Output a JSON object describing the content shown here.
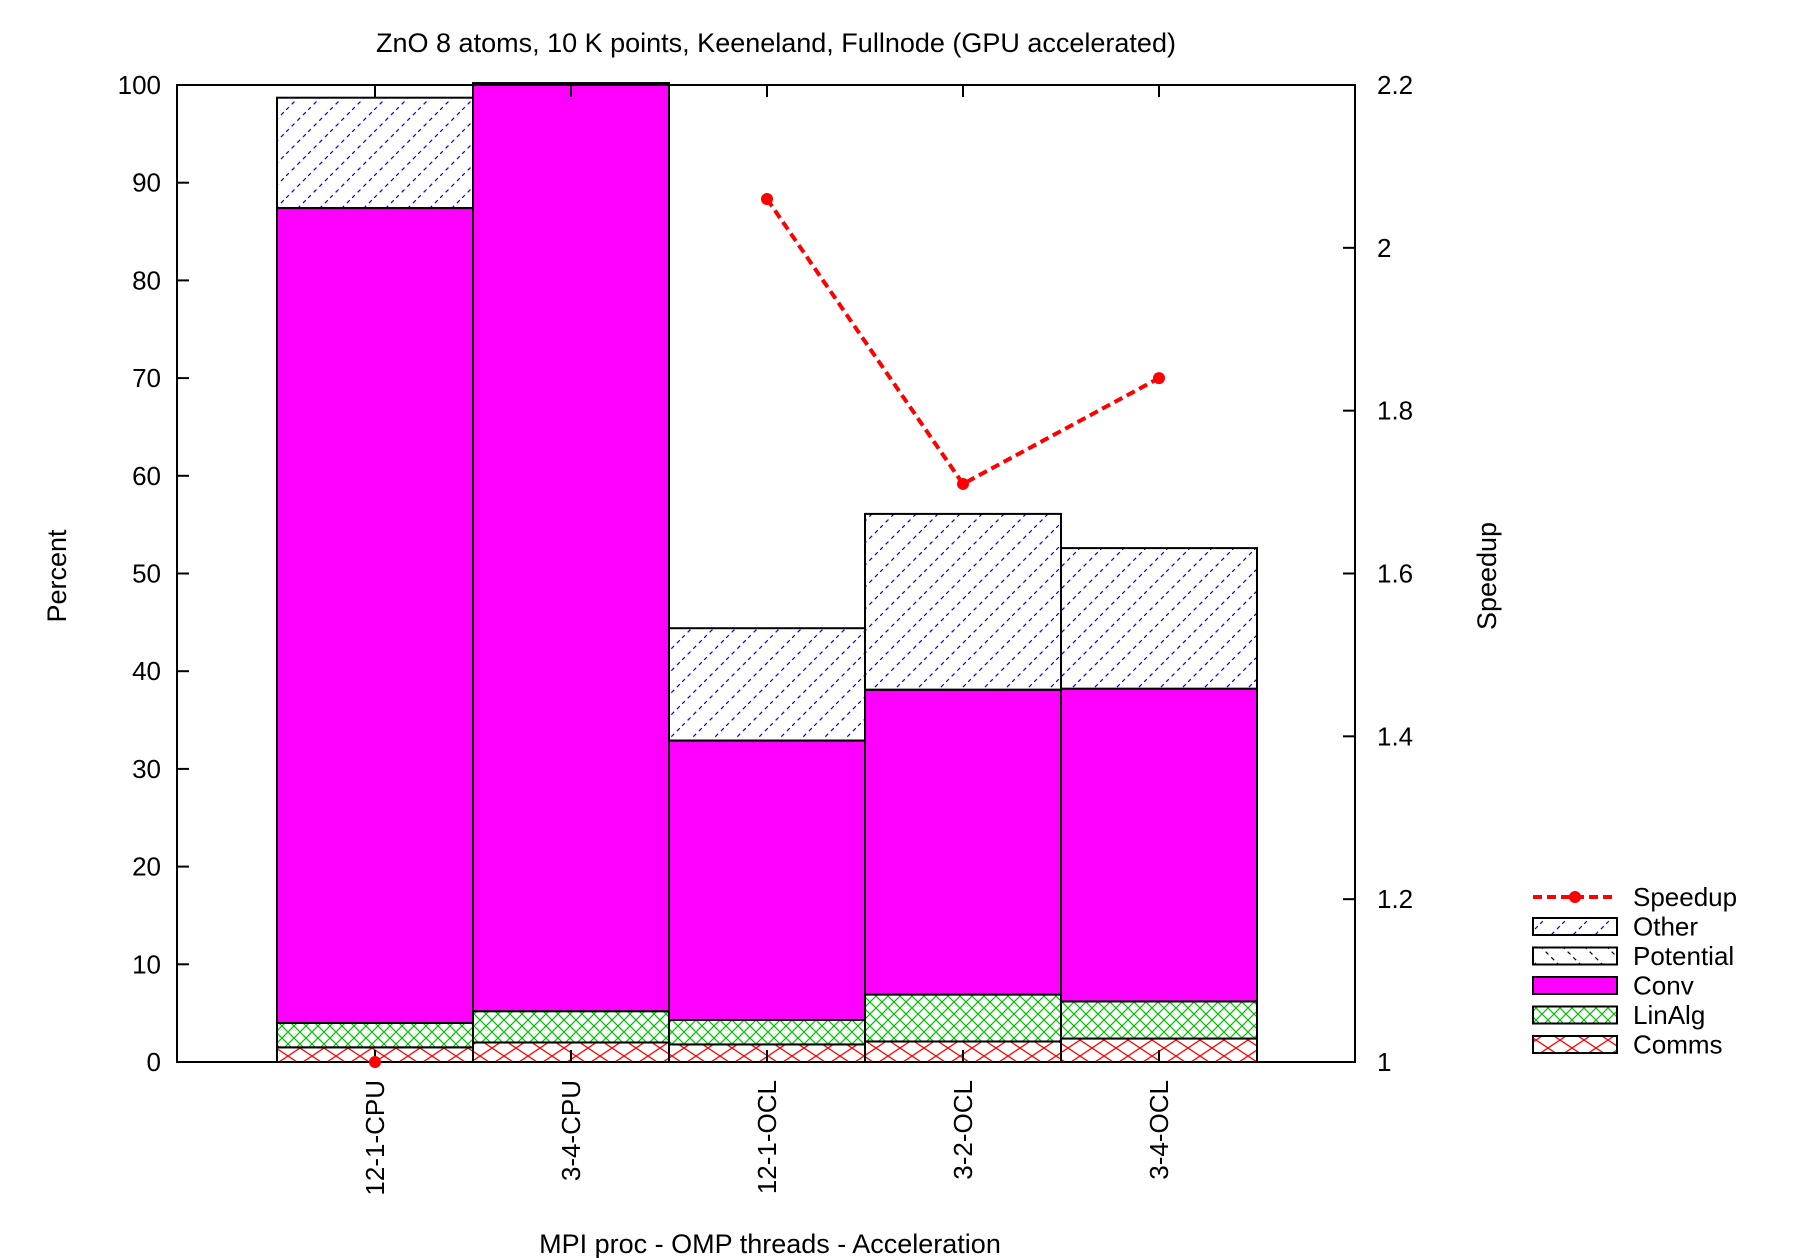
{
  "chart_data": {
    "type": "bar",
    "title": "ZnO 8 atoms, 10 K points, Keeneland, Fullnode (GPU accelerated)",
    "xlabel": "MPI proc - OMP threads - Acceleration",
    "ylabel": "Percent",
    "y2label": "Speedup",
    "categories": [
      "12-1-CPU",
      "3-4-CPU",
      "12-1-OCL",
      "3-2-OCL",
      "3-4-OCL"
    ],
    "ylim": [
      0,
      100
    ],
    "y2lim": [
      1,
      2.2
    ],
    "yticks": [
      "0",
      "10",
      "20",
      "30",
      "40",
      "50",
      "60",
      "70",
      "80",
      "90",
      "100"
    ],
    "y2ticks": [
      "1",
      "1.2",
      "1.4",
      "1.6",
      "1.8",
      "2",
      "2.2"
    ],
    "stacked": true,
    "series": [
      {
        "name": "Comms",
        "color": "#ff0000",
        "pattern": "cross",
        "values": [
          1.5,
          2.0,
          1.8,
          2.1,
          2.4
        ]
      },
      {
        "name": "LinAlg",
        "color": "#00c000",
        "pattern": "crosshatch",
        "values": [
          2.5,
          3.2,
          2.5,
          4.8,
          3.8
        ]
      },
      {
        "name": "Conv",
        "color": "#ff00ff",
        "pattern": "solid",
        "values": [
          83.4,
          95.0,
          28.6,
          31.2,
          32.0
        ]
      },
      {
        "name": "Potential",
        "color": "#000000",
        "pattern": "backslash",
        "values": [
          0,
          0,
          0,
          0,
          0
        ]
      },
      {
        "name": "Other",
        "color": "#0000ff",
        "pattern": "slash",
        "values": [
          11.3,
          0,
          11.5,
          18.0,
          14.4
        ]
      }
    ],
    "line_series": {
      "name": "Speedup",
      "axis": "y2",
      "color": "#ff0000",
      "values": [
        1.0,
        null,
        2.06,
        1.71,
        1.84
      ]
    },
    "legend": {
      "position": "bottom-right",
      "order": [
        "Speedup",
        "Other",
        "Potential",
        "Conv",
        "LinAlg",
        "Comms"
      ]
    },
    "grid": false
  }
}
